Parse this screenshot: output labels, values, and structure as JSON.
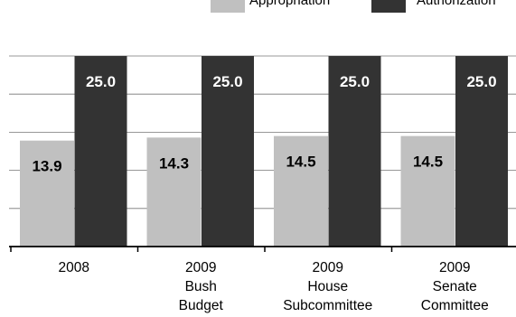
{
  "chart_data": {
    "type": "bar",
    "categories": [
      [
        "2008"
      ],
      [
        "2009",
        "Bush",
        "Budget"
      ],
      [
        "2009",
        "House",
        "Subcommittee"
      ],
      [
        "2009",
        "Senate",
        "Committee"
      ]
    ],
    "series": [
      {
        "name": "Appropriation",
        "values": [
          13.9,
          14.3,
          14.5,
          14.5
        ],
        "labels": [
          "13.9",
          "14.3",
          "14.5",
          "14.5"
        ],
        "color": "#c0c0c0",
        "label_color": "#000000"
      },
      {
        "name": "Authorization",
        "values": [
          25.0,
          25.0,
          25.0,
          25.0
        ],
        "labels": [
          "25.0",
          "25.0",
          "25.0",
          "25.0"
        ],
        "color": "#333333",
        "label_color": "#ffffff"
      }
    ],
    "ylim": [
      0,
      25
    ],
    "grid": true,
    "legend_position": "top-right",
    "title": "",
    "xlabel": "",
    "ylabel": ""
  }
}
